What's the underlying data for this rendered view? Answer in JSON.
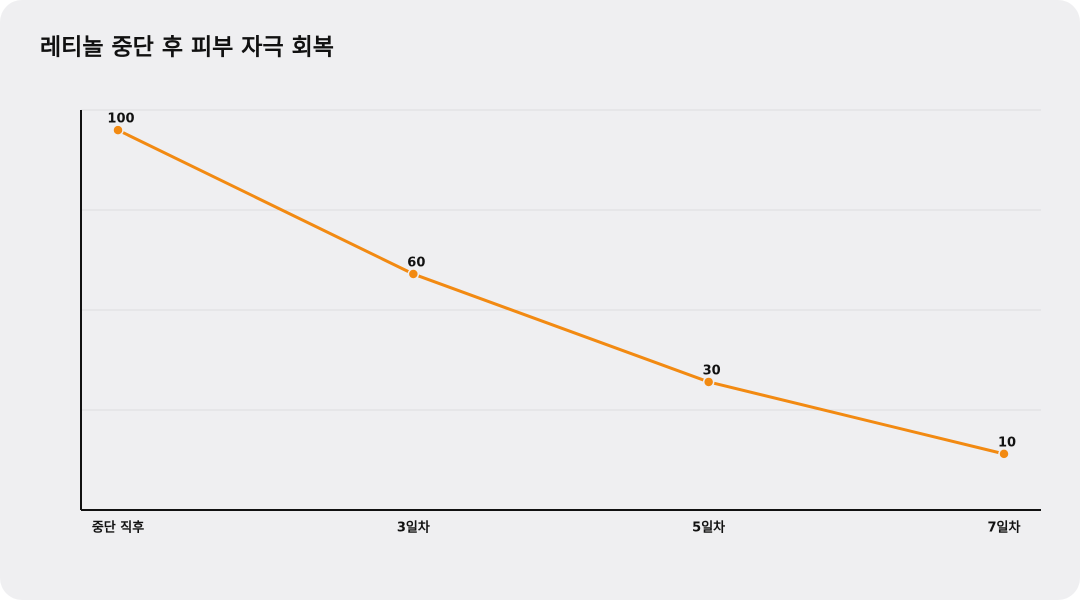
{
  "chart_data": {
    "type": "line",
    "title": "레티놀 중단 후 피부 자극 회복",
    "categories": [
      "중단 직후",
      "3일차",
      "5일차",
      "7일차"
    ],
    "values": [
      100,
      60,
      30,
      10
    ],
    "color": "#f28a12",
    "ylim": [
      -5.6,
      105.6
    ],
    "yticks": [
      22.2,
      50,
      77.8,
      105.6
    ],
    "grid": true
  }
}
